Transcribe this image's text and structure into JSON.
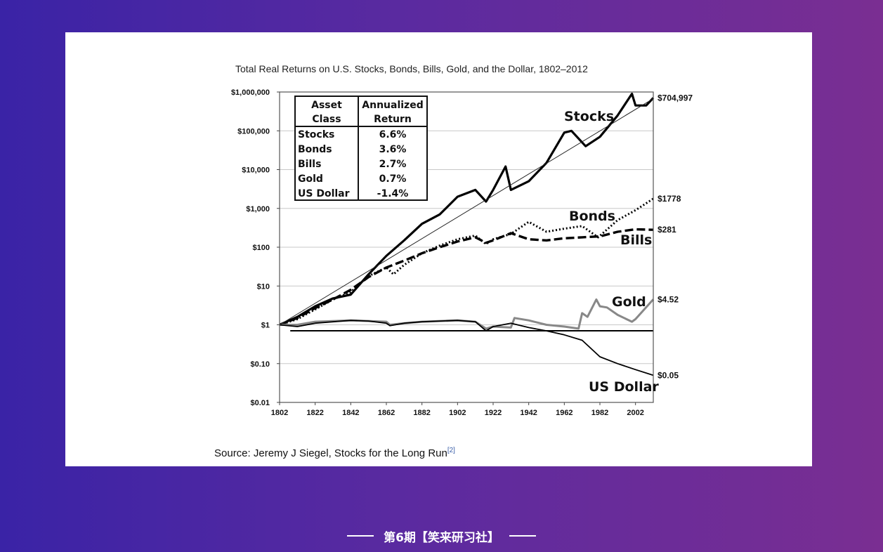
{
  "chart_data": {
    "type": "line",
    "title": "Total Real Returns on U.S. Stocks, Bonds, Bills, Gold, and the Dollar, 1802–2012",
    "xlabel": "",
    "ylabel": "",
    "xlim": [
      1802,
      2012
    ],
    "ylim": [
      0.01,
      1000000
    ],
    "y_scale": "log",
    "grid": true,
    "x_ticks": [
      "1802",
      "1822",
      "1842",
      "1862",
      "1882",
      "1902",
      "1922",
      "1942",
      "1962",
      "1982",
      "2002"
    ],
    "y_ticks": [
      {
        "value": 1000000,
        "label": "$1,000,000"
      },
      {
        "value": 100000,
        "label": "$100,000"
      },
      {
        "value": 10000,
        "label": "$10,000"
      },
      {
        "value": 1000,
        "label": "$1,000"
      },
      {
        "value": 100,
        "label": "$100"
      },
      {
        "value": 10,
        "label": "$10"
      },
      {
        "value": 1,
        "label": "$1"
      },
      {
        "value": 0.1,
        "label": "$0.10"
      },
      {
        "value": 0.01,
        "label": "$0.01"
      }
    ],
    "series": [
      {
        "name": "Stocks",
        "end_label": "$704,997",
        "style": "solid-thick",
        "color": "#000000",
        "x": [
          1802,
          1812,
          1822,
          1832,
          1842,
          1852,
          1862,
          1872,
          1882,
          1892,
          1902,
          1912,
          1918,
          1922,
          1929,
          1932,
          1942,
          1952,
          1962,
          1966,
          1974,
          1982,
          1992,
          2000,
          2002,
          2008,
          2012
        ],
        "y": [
          1,
          1.6,
          3,
          4.8,
          6,
          20,
          60,
          150,
          400,
          700,
          2000,
          3000,
          1500,
          3000,
          12000,
          3000,
          5000,
          15000,
          90000,
          100000,
          40000,
          70000,
          250000,
          900000,
          450000,
          450000,
          704997
        ]
      },
      {
        "name": "Bonds",
        "end_label": "$1778",
        "style": "dotted",
        "color": "#000000",
        "x": [
          1802,
          1812,
          1822,
          1832,
          1842,
          1852,
          1862,
          1866,
          1872,
          1882,
          1892,
          1902,
          1912,
          1918,
          1922,
          1932,
          1942,
          1952,
          1962,
          1972,
          1981,
          1992,
          2002,
          2012
        ],
        "y": [
          1,
          1.4,
          2.5,
          4.5,
          7,
          18,
          30,
          20,
          35,
          70,
          110,
          160,
          200,
          120,
          160,
          220,
          450,
          250,
          300,
          350,
          180,
          500,
          900,
          1778
        ]
      },
      {
        "name": "Bills",
        "end_label": "$281",
        "style": "dashed",
        "color": "#000000",
        "x": [
          1802,
          1812,
          1822,
          1832,
          1842,
          1852,
          1862,
          1872,
          1882,
          1892,
          1902,
          1912,
          1918,
          1922,
          1932,
          1942,
          1952,
          1962,
          1972,
          1982,
          1992,
          2002,
          2012
        ],
        "y": [
          1,
          1.5,
          2.7,
          4.5,
          8,
          17,
          30,
          45,
          70,
          100,
          140,
          180,
          130,
          150,
          230,
          160,
          150,
          170,
          180,
          190,
          250,
          290,
          281
        ]
      },
      {
        "name": "Gold",
        "end_label": "$4.52",
        "style": "solid-gray",
        "color": "#888888",
        "x": [
          1802,
          1812,
          1822,
          1842,
          1852,
          1862,
          1864,
          1872,
          1882,
          1902,
          1912,
          1918,
          1922,
          1932,
          1934,
          1942,
          1952,
          1962,
          1970,
          1972,
          1975,
          1980,
          1982,
          1986,
          1992,
          2000,
          2002,
          2012
        ],
        "y": [
          1,
          1,
          1.2,
          1.3,
          1.25,
          1.2,
          1.0,
          1.1,
          1.2,
          1.3,
          1.2,
          0.8,
          0.9,
          0.85,
          1.5,
          1.3,
          1.0,
          0.9,
          0.8,
          2.0,
          1.6,
          4.5,
          3.0,
          2.8,
          1.8,
          1.2,
          1.4,
          4.52
        ]
      },
      {
        "name": "US Dollar",
        "end_label": "$0.05",
        "style": "solid-thin",
        "color": "#000000",
        "x": [
          1802,
          1812,
          1822,
          1842,
          1852,
          1862,
          1864,
          1872,
          1882,
          1902,
          1912,
          1918,
          1922,
          1932,
          1942,
          1952,
          1962,
          1972,
          1982,
          1992,
          2002,
          2012
        ],
        "y": [
          1,
          0.9,
          1.1,
          1.3,
          1.25,
          1.1,
          0.95,
          1.1,
          1.2,
          1.3,
          1.2,
          0.7,
          0.9,
          1.1,
          0.85,
          0.7,
          0.55,
          0.4,
          0.15,
          0.1,
          0.07,
          0.05
        ]
      }
    ],
    "reference_line": {
      "y": 0.7
    },
    "legend": {
      "placement": "top-left",
      "headers": [
        "Asset Class",
        "Annualized Return"
      ],
      "rows": [
        {
          "asset": "Stocks",
          "ret": "6.6%"
        },
        {
          "asset": "Bonds",
          "ret": "3.6%"
        },
        {
          "asset": "Bills",
          "ret": "2.7%"
        },
        {
          "asset": "Gold",
          "ret": "0.7%"
        },
        {
          "asset": "US Dollar",
          "ret": "-1.4%"
        }
      ]
    }
  },
  "source": {
    "text": "Source: Jeremy J Siegel, Stocks for the Long Run",
    "ref": "[2]"
  },
  "footer": {
    "text": "第6期【笑来研习社】"
  }
}
